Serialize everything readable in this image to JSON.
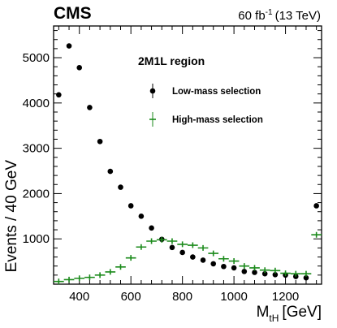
{
  "chart_data": {
    "type": "scatter",
    "experiment": "CMS",
    "luminosity": {
      "value": "60 fb",
      "exponent": "-1",
      "energy": "(13 TeV)"
    },
    "xlabel": {
      "main": "M",
      "sub": "tH",
      "units": "[GeV]"
    },
    "ylabel": "Events / 40 GeV",
    "xlim": [
      300,
      1340
    ],
    "ylim": [
      0,
      5700
    ],
    "xticks": [
      "400",
      "600",
      "800",
      "1000",
      "1200"
    ],
    "yticks": [
      "1000",
      "2000",
      "3000",
      "4000",
      "5000"
    ],
    "legend_title": "2M1L region",
    "x": [
      320,
      360,
      400,
      440,
      480,
      520,
      560,
      600,
      640,
      680,
      720,
      760,
      800,
      840,
      880,
      920,
      960,
      1000,
      1040,
      1080,
      1120,
      1160,
      1200,
      1240,
      1280,
      1320
    ],
    "series": [
      {
        "name": "Low-mass selection",
        "marker": "circle",
        "color": "#000000",
        "values": [
          4180,
          5260,
          4780,
          3900,
          3150,
          2490,
          2140,
          1730,
          1500,
          1240,
          990,
          810,
          700,
          600,
          530,
          450,
          390,
          360,
          280,
          260,
          230,
          210,
          200,
          170,
          140,
          1730
        ]
      },
      {
        "name": "High-mass selection",
        "marker": "cross",
        "color": "#1a8a1a",
        "values": [
          60,
          100,
          130,
          150,
          200,
          270,
          380,
          580,
          820,
          950,
          980,
          950,
          880,
          860,
          800,
          680,
          560,
          510,
          400,
          360,
          310,
          300,
          240,
          230,
          230,
          1090
        ]
      }
    ],
    "grid": false,
    "legend_position": "top-right"
  }
}
